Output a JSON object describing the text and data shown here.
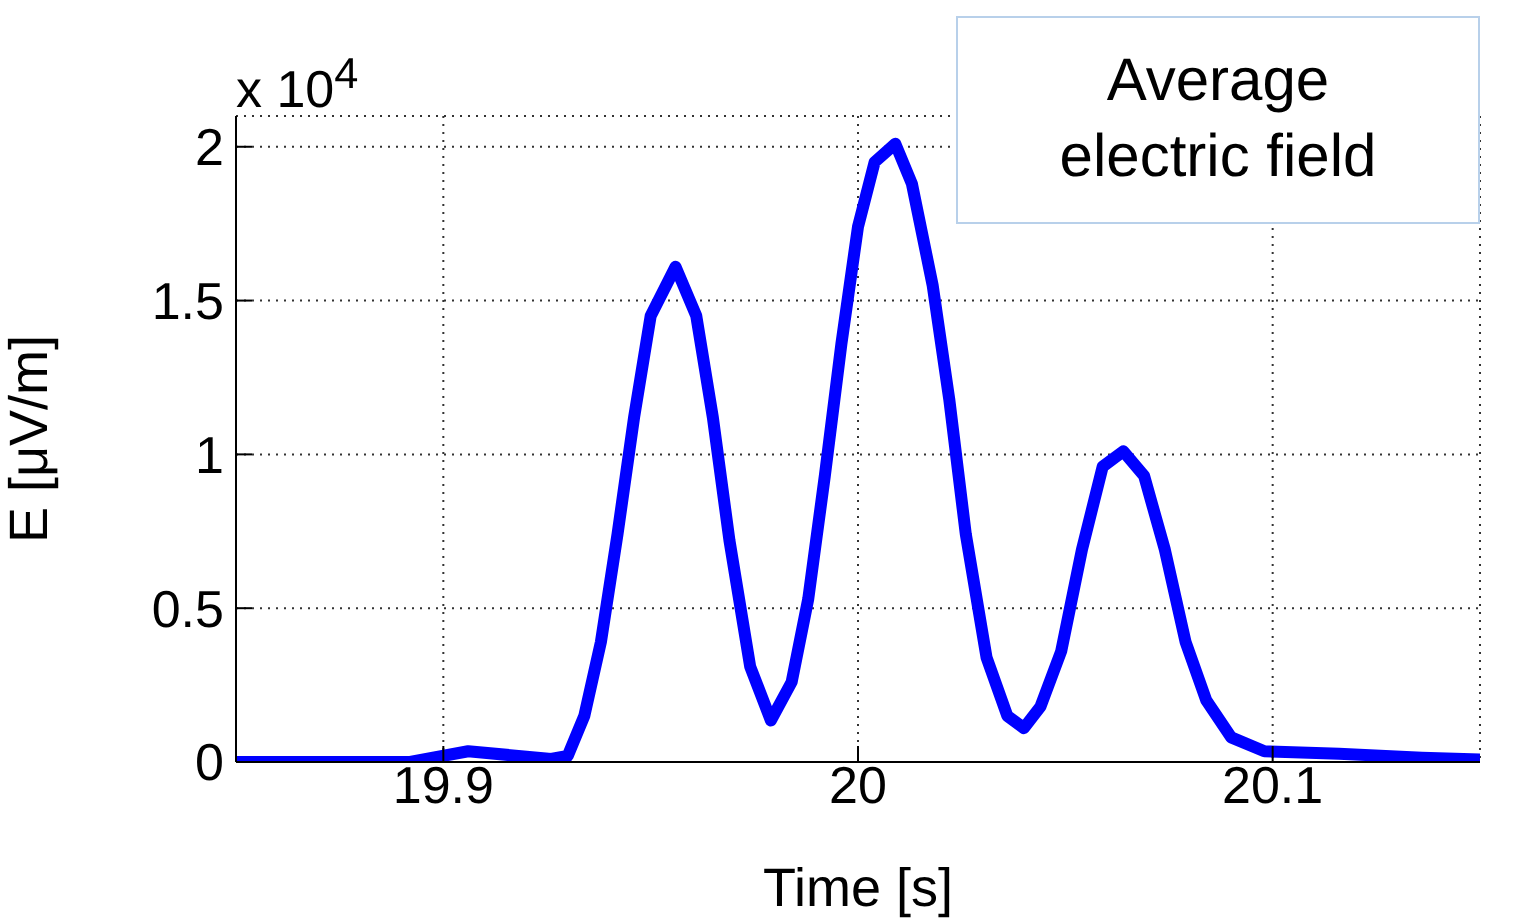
{
  "chart_data": {
    "type": "line",
    "xlabel": "Time [s]",
    "ylabel": "E [μV/m]",
    "annotations": [
      "x 10$^{4}$",
      "Average electric field"
    ],
    "xlim": [
      19.85,
      20.15
    ],
    "xticks": [
      19.9,
      20,
      20.1
    ],
    "ylim": [
      0,
      2.1
    ],
    "yticks": [
      0,
      0.5,
      1,
      1.5,
      2
    ],
    "grid": true,
    "marker": "none",
    "line_style": "solid",
    "series": [
      {
        "color": "#0000ff",
        "x": [
          19.85,
          19.892,
          19.906,
          19.926,
          19.93,
          19.934,
          19.938,
          19.942,
          19.946,
          19.95,
          19.956,
          19.961,
          19.965,
          19.969,
          19.974,
          19.979,
          19.984,
          19.988,
          19.992,
          19.996,
          20.0,
          20.004,
          20.009,
          20.013,
          20.018,
          20.022,
          20.026,
          20.031,
          20.036,
          20.04,
          20.044,
          20.049,
          20.054,
          20.059,
          20.064,
          20.069,
          20.074,
          20.079,
          20.084,
          20.09,
          20.098,
          20.116,
          20.136,
          20.15
        ],
        "values": [
          0,
          0,
          0.035,
          0.01,
          0.02,
          0.15,
          0.39,
          0.74,
          1.12,
          1.45,
          1.61,
          1.45,
          1.12,
          0.72,
          0.31,
          0.135,
          0.26,
          0.53,
          0.93,
          1.36,
          1.74,
          1.95,
          2.01,
          1.88,
          1.55,
          1.18,
          0.74,
          0.34,
          0.15,
          0.11,
          0.18,
          0.36,
          0.69,
          0.96,
          1.01,
          0.93,
          0.69,
          0.39,
          0.2,
          0.08,
          0.035,
          0.027,
          0.014,
          0.008
        ]
      }
    ]
  }
}
